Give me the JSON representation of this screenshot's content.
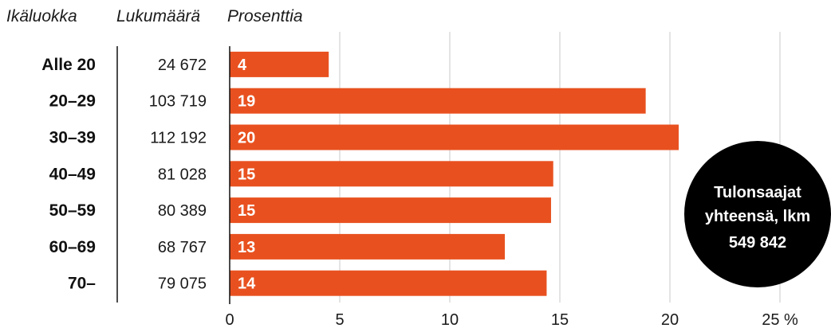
{
  "headers": {
    "category": "Ikäluokka",
    "count": "Lukumäärä",
    "percent": "Prosenttia"
  },
  "total": {
    "line1": "Tulonsaajat",
    "line2": "yhteensä, lkm",
    "value": "549 842"
  },
  "colors": {
    "bar": "#e8511f",
    "bar_label": "#ffffff",
    "grid": "#c8c8c8",
    "axis": "#111111",
    "circle": "#000000"
  },
  "chart_data": {
    "type": "bar",
    "orientation": "horizontal",
    "categories": [
      "Alle 20",
      "20–29",
      "30–39",
      "40–49",
      "50–59",
      "60–69",
      "70–"
    ],
    "counts": [
      "24 672",
      "103 719",
      "112 192",
      "81 028",
      "80 389",
      "68 767",
      "79 075"
    ],
    "values": [
      4.5,
      18.9,
      20.4,
      14.7,
      14.6,
      12.5,
      14.4
    ],
    "value_labels": [
      "4",
      "19",
      "20",
      "15",
      "15",
      "13",
      "14"
    ],
    "xlim": [
      0,
      25
    ],
    "xticks": [
      0,
      5,
      10,
      15,
      20,
      25
    ],
    "xtick_labels": [
      "0",
      "5",
      "10",
      "15",
      "20",
      "25 %"
    ],
    "xlabel": "",
    "ylabel": "",
    "grid": true
  }
}
